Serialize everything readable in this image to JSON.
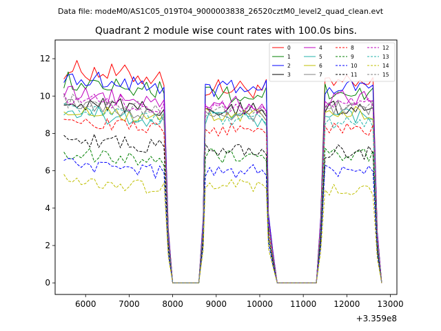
{
  "suptitle": "Data file: modeM0/AS1C05_019T04_9000003838_26520cztM0_level2_quad_clean.evt",
  "chart_data": {
    "type": "line",
    "title": "Quadrant 2 module wise count rates with 100.0s bins.",
    "xlabel": "",
    "ylabel": "",
    "x_offset_label": "+3.359e8",
    "xlim": [
      5300,
      13150
    ],
    "ylim": [
      -0.62,
      13.0
    ],
    "xticks": [
      6000,
      7000,
      8000,
      9000,
      10000,
      11000,
      12000,
      13000
    ],
    "yticks": [
      0,
      2,
      4,
      6,
      8,
      10,
      12
    ],
    "legend_position": "upper-right",
    "legend_columns": 4,
    "segments": [
      {
        "start": 5500,
        "end": 7800,
        "ramp_down_to": 8000
      },
      {
        "start": 8750,
        "end": 10100,
        "ramp_up_from": 8600,
        "ramp_down_to": 10350
      },
      {
        "start": 11500,
        "end": 12600,
        "ramp_up_from": 11300,
        "ramp_down_to": 12800
      }
    ],
    "gap_level": 0.0,
    "series": [
      {
        "name": "0",
        "color": "#ff0000",
        "style": "solid",
        "seg_levels": [
          11.2,
          10.4,
          10.6
        ],
        "amp": 0.55
      },
      {
        "name": "1",
        "color": "#008000",
        "style": "solid",
        "seg_levels": [
          10.6,
          10.0,
          10.2
        ],
        "amp": 0.5
      },
      {
        "name": "2",
        "color": "#0000ff",
        "style": "solid",
        "seg_levels": [
          10.8,
          10.4,
          10.5
        ],
        "amp": 0.45
      },
      {
        "name": "3",
        "color": "#000000",
        "style": "solid",
        "seg_levels": [
          9.5,
          9.3,
          9.4
        ],
        "amp": 0.4
      },
      {
        "name": "4",
        "color": "#bf00bf",
        "style": "solid",
        "seg_levels": [
          9.9,
          9.6,
          9.9
        ],
        "amp": 0.45
      },
      {
        "name": "5",
        "color": "#20b2aa",
        "style": "solid",
        "seg_levels": [
          8.9,
          8.8,
          9.0
        ],
        "amp": 0.45
      },
      {
        "name": "6",
        "color": "#bfbf00",
        "style": "solid",
        "seg_levels": [
          9.0,
          9.0,
          9.1
        ],
        "amp": 0.4
      },
      {
        "name": "7",
        "color": "#808080",
        "style": "solid",
        "seg_levels": [
          9.3,
          9.0,
          9.3
        ],
        "amp": 0.4
      },
      {
        "name": "8",
        "color": "#ff0000",
        "style": "dashed",
        "seg_levels": [
          8.5,
          8.2,
          8.2
        ],
        "amp": 0.35
      },
      {
        "name": "9",
        "color": "#008000",
        "style": "dashed",
        "seg_levels": [
          6.7,
          6.8,
          6.9
        ],
        "amp": 0.4
      },
      {
        "name": "10",
        "color": "#0000ff",
        "style": "dashed",
        "seg_levels": [
          6.2,
          6.0,
          5.9
        ],
        "amp": 0.4
      },
      {
        "name": "11",
        "color": "#000000",
        "style": "dashed",
        "seg_levels": [
          7.5,
          7.1,
          7.0
        ],
        "amp": 0.4
      },
      {
        "name": "12",
        "color": "#bf00bf",
        "style": "dashed",
        "seg_levels": [
          9.7,
          9.4,
          9.6
        ],
        "amp": 0.4
      },
      {
        "name": "13",
        "color": "#20b2aa",
        "style": "dashed",
        "seg_levels": [
          9.1,
          8.7,
          8.6
        ],
        "amp": 0.4
      },
      {
        "name": "14",
        "color": "#bfbf00",
        "style": "dashed",
        "seg_levels": [
          5.3,
          5.2,
          5.0
        ],
        "amp": 0.35
      },
      {
        "name": "15",
        "color": "#808080",
        "style": "dashed",
        "seg_levels": [
          9.5,
          9.2,
          9.4
        ],
        "amp": 0.4
      }
    ]
  }
}
